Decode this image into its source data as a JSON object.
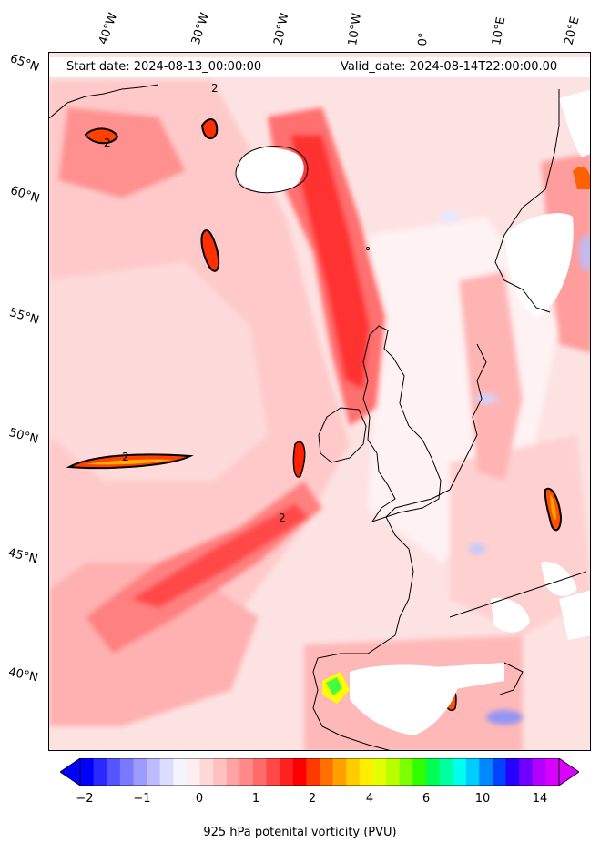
{
  "header": {
    "start_date": "Start date: 2024-08-13_00:00:00",
    "valid_date": "Valid_date: 2024-08-14T22:00:00.00"
  },
  "lon_labels": [
    "40°W",
    "30°W",
    "20°W",
    "10°W",
    "0°",
    "10°E",
    "20°E"
  ],
  "lat_labels": [
    "65°N",
    "60°N",
    "55°N",
    "50°N",
    "45°N",
    "40°N"
  ],
  "contour_label": "2",
  "colorbar": {
    "title": "925 hPa potenital vorticity (PVU)",
    "ticks": [
      "−2",
      "−1",
      "0",
      "1",
      "2",
      "4",
      "6",
      "10",
      "14"
    ],
    "colors": [
      "#0000ff",
      "#2a2aff",
      "#5555ff",
      "#7a7aff",
      "#9a9aff",
      "#bcbcff",
      "#dcdcff",
      "#f4f4ff",
      "#ffeeee",
      "#ffd8d8",
      "#ffc0c0",
      "#ffa4a4",
      "#ff8888",
      "#ff6a6a",
      "#ff4848",
      "#ff2020",
      "#ff0000",
      "#ff3a00",
      "#ff7000",
      "#ffa000",
      "#ffcc00",
      "#ffee00",
      "#e4ff00",
      "#b8ff00",
      "#7cff00",
      "#30ff00",
      "#00ff50",
      "#00ffa0",
      "#00ffee",
      "#00ccff",
      "#0088ff",
      "#0044ff",
      "#2800ff",
      "#7000ff",
      "#b400ff",
      "#d800ff"
    ]
  }
}
